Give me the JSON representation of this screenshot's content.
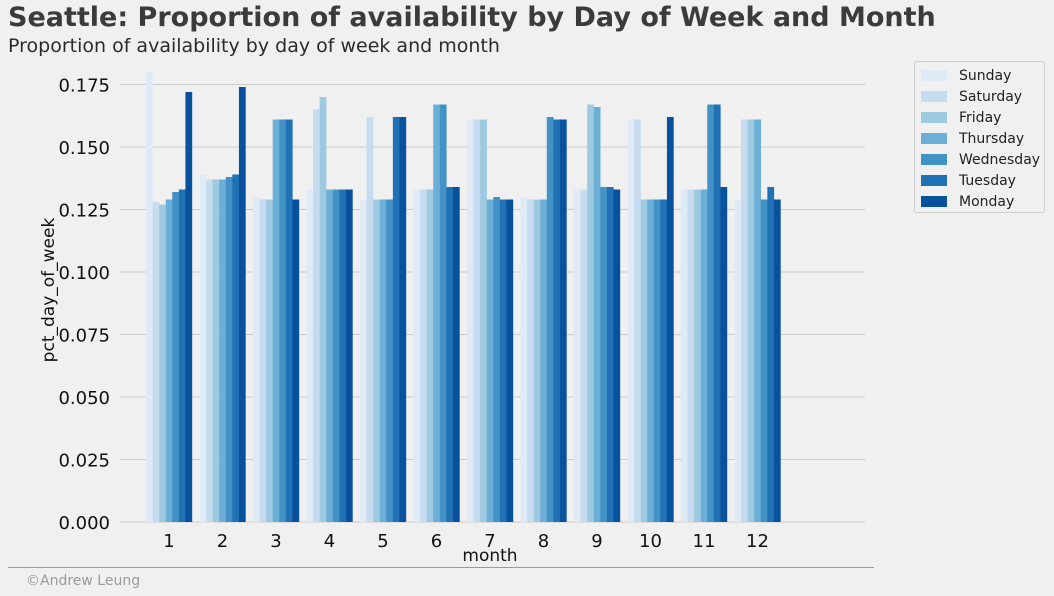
{
  "title": "Seattle: Proportion of availability by Day of Week and Month",
  "subtitle": "Proportion of availability by day of week and month",
  "footer": "©Andrew Leung",
  "chart_data": {
    "type": "bar",
    "xlabel": "month",
    "ylabel": "pct_day_of_week",
    "ylim": [
      0,
      0.18
    ],
    "yticks": [
      "0.000",
      "0.025",
      "0.050",
      "0.075",
      "0.100",
      "0.125",
      "0.150",
      "0.175"
    ],
    "grid": "horizontal",
    "legend_position": "outside-top-right",
    "categories": [
      "1",
      "2",
      "3",
      "4",
      "5",
      "6",
      "7",
      "8",
      "9",
      "10",
      "11",
      "12"
    ],
    "series": [
      {
        "name": "Sunday",
        "color": "#deebf7",
        "values": [
          0.18,
          0.139,
          0.13,
          0.133,
          0.129,
          0.133,
          0.161,
          0.13,
          0.133,
          0.161,
          0.133,
          0.129
        ]
      },
      {
        "name": "Saturday",
        "color": "#c6dbef",
        "values": [
          0.128,
          0.137,
          0.129,
          0.165,
          0.162,
          0.133,
          0.161,
          0.129,
          0.133,
          0.161,
          0.133,
          0.161
        ]
      },
      {
        "name": "Friday",
        "color": "#9ecae1",
        "values": [
          0.127,
          0.137,
          0.129,
          0.17,
          0.129,
          0.133,
          0.161,
          0.129,
          0.167,
          0.129,
          0.133,
          0.161
        ]
      },
      {
        "name": "Thursday",
        "color": "#6baed6",
        "values": [
          0.129,
          0.137,
          0.161,
          0.133,
          0.129,
          0.167,
          0.129,
          0.129,
          0.166,
          0.129,
          0.133,
          0.161
        ]
      },
      {
        "name": "Wednesday",
        "color": "#4292c6",
        "values": [
          0.132,
          0.138,
          0.161,
          0.133,
          0.129,
          0.167,
          0.13,
          0.162,
          0.134,
          0.129,
          0.167,
          0.129
        ]
      },
      {
        "name": "Tuesday",
        "color": "#2171b5",
        "values": [
          0.133,
          0.139,
          0.161,
          0.133,
          0.162,
          0.134,
          0.129,
          0.161,
          0.134,
          0.129,
          0.167,
          0.134
        ]
      },
      {
        "name": "Monday",
        "color": "#08519c",
        "values": [
          0.172,
          0.174,
          0.129,
          0.133,
          0.162,
          0.134,
          0.129,
          0.161,
          0.133,
          0.162,
          0.134,
          0.129
        ]
      }
    ]
  }
}
